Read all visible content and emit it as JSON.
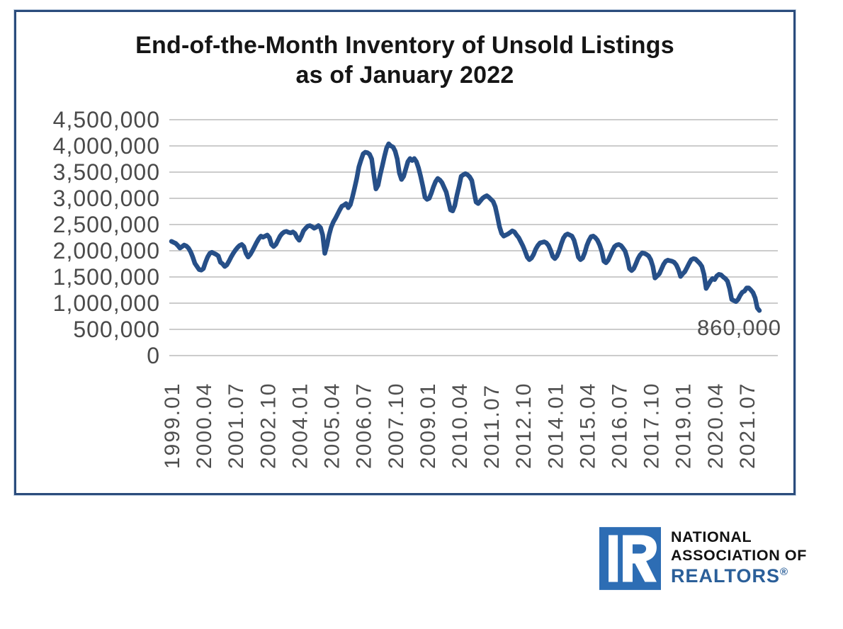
{
  "chart": {
    "title_line1": "End-of-the-Month Inventory of Unsold Listings",
    "title_line2": "as of January 2022",
    "border_color": "#2b4c7c"
  },
  "chart_data": {
    "type": "line",
    "title": "End-of-the-Month Inventory of Unsold Listings as of January 2022",
    "x_frequency": "monthly",
    "x_start": "1999.01",
    "x_end": "2022.01",
    "x_tick_interval_months": 15,
    "x_tick_labels": [
      "1999.01",
      "2000.04",
      "2001.07",
      "2002.10",
      "2004.01",
      "2005.04",
      "2006.07",
      "2007.10",
      "2009.01",
      "2010.04",
      "2011.07",
      "2012.10",
      "2014.01",
      "2015.04",
      "2016.07",
      "2017.10",
      "2019.01",
      "2020.04",
      "2021.07"
    ],
    "y_ticks": [
      0,
      500000,
      1000000,
      1500000,
      2000000,
      2500000,
      3000000,
      3500000,
      4000000,
      4500000
    ],
    "ylim": [
      0,
      4500000
    ],
    "grid": "horizontal",
    "legend": "none",
    "line_color": "#264f88",
    "gridline_color": "#cccccc",
    "axis_label_color": "#4a4a4a",
    "last_value": 860000,
    "last_value_label": "860,000",
    "series": [
      {
        "name": "End-of-month inventory of unsold listings",
        "values": [
          2180000,
          2160000,
          2140000,
          2100000,
          2050000,
          2080000,
          2110000,
          2090000,
          2050000,
          1980000,
          1880000,
          1760000,
          1700000,
          1640000,
          1630000,
          1660000,
          1780000,
          1880000,
          1950000,
          1970000,
          1950000,
          1930000,
          1900000,
          1780000,
          1750000,
          1700000,
          1730000,
          1800000,
          1880000,
          1950000,
          2010000,
          2060000,
          2100000,
          2120000,
          2080000,
          1950000,
          1880000,
          1930000,
          2000000,
          2080000,
          2160000,
          2230000,
          2280000,
          2260000,
          2280000,
          2300000,
          2250000,
          2120000,
          2080000,
          2120000,
          2200000,
          2280000,
          2330000,
          2360000,
          2370000,
          2350000,
          2340000,
          2360000,
          2330000,
          2250000,
          2200000,
          2280000,
          2380000,
          2430000,
          2470000,
          2480000,
          2460000,
          2430000,
          2450000,
          2480000,
          2440000,
          2300000,
          1950000,
          2100000,
          2300000,
          2450000,
          2550000,
          2620000,
          2700000,
          2780000,
          2850000,
          2870000,
          2900000,
          2820000,
          2880000,
          3030000,
          3200000,
          3380000,
          3600000,
          3730000,
          3850000,
          3880000,
          3870000,
          3840000,
          3750000,
          3450000,
          3180000,
          3250000,
          3450000,
          3620000,
          3800000,
          3960000,
          4040000,
          4000000,
          3980000,
          3900000,
          3750000,
          3480000,
          3360000,
          3420000,
          3560000,
          3700000,
          3760000,
          3720000,
          3760000,
          3700000,
          3580000,
          3420000,
          3230000,
          3020000,
          2980000,
          3000000,
          3100000,
          3220000,
          3320000,
          3380000,
          3350000,
          3300000,
          3210000,
          3120000,
          2950000,
          2780000,
          2760000,
          2860000,
          3060000,
          3230000,
          3420000,
          3450000,
          3470000,
          3450000,
          3410000,
          3340000,
          3130000,
          2930000,
          2900000,
          2950000,
          3000000,
          3030000,
          3050000,
          3020000,
          2980000,
          2940000,
          2840000,
          2660000,
          2460000,
          2330000,
          2280000,
          2300000,
          2320000,
          2350000,
          2380000,
          2360000,
          2300000,
          2250000,
          2170000,
          2090000,
          1990000,
          1880000,
          1830000,
          1860000,
          1930000,
          2030000,
          2100000,
          2150000,
          2160000,
          2170000,
          2150000,
          2100000,
          2010000,
          1890000,
          1850000,
          1900000,
          2000000,
          2130000,
          2240000,
          2300000,
          2320000,
          2300000,
          2280000,
          2200000,
          2050000,
          1880000,
          1830000,
          1860000,
          1960000,
          2100000,
          2200000,
          2270000,
          2280000,
          2250000,
          2200000,
          2110000,
          1990000,
          1800000,
          1770000,
          1820000,
          1910000,
          2000000,
          2080000,
          2110000,
          2120000,
          2100000,
          2050000,
          1990000,
          1850000,
          1660000,
          1620000,
          1660000,
          1750000,
          1850000,
          1920000,
          1960000,
          1950000,
          1930000,
          1900000,
          1830000,
          1700000,
          1480000,
          1520000,
          1560000,
          1650000,
          1740000,
          1800000,
          1820000,
          1810000,
          1800000,
          1780000,
          1730000,
          1640000,
          1510000,
          1560000,
          1600000,
          1680000,
          1760000,
          1830000,
          1850000,
          1840000,
          1800000,
          1760000,
          1700000,
          1550000,
          1280000,
          1350000,
          1420000,
          1470000,
          1450000,
          1520000,
          1550000,
          1540000,
          1500000,
          1470000,
          1420000,
          1280000,
          1070000,
          1050000,
          1030000,
          1070000,
          1150000,
          1210000,
          1230000,
          1290000,
          1290000,
          1250000,
          1200000,
          1100000,
          910000,
          860000
        ]
      }
    ]
  },
  "logo": {
    "line1": "NATIONAL",
    "line2": "ASSOCIATION OF",
    "line3": "REALTORS",
    "registered_mark": "®",
    "square_blue": "#2d6db4",
    "realtors_blue": "#2b5f99"
  }
}
